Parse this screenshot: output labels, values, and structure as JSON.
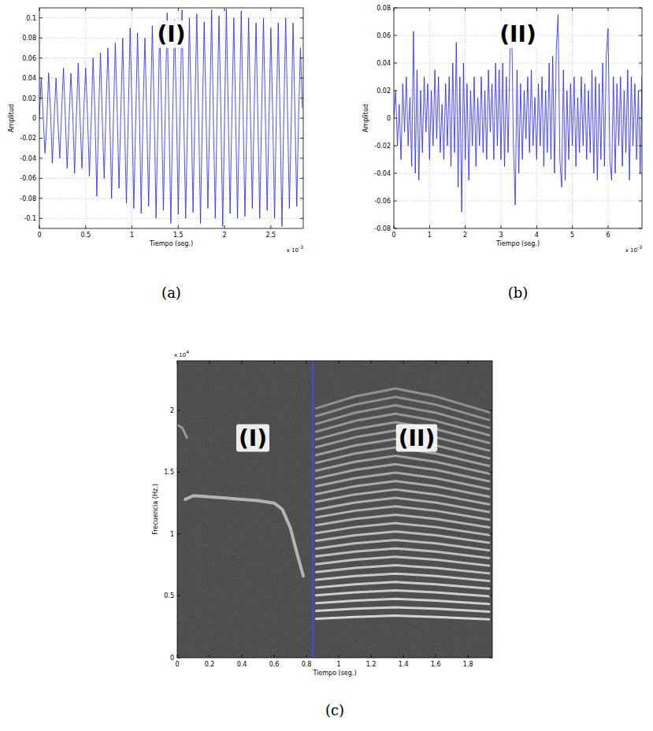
{
  "chart_data": [
    {
      "type": "line",
      "color": "#1f1fff",
      "x_label": "Tiempo (seg.)",
      "y_label": "Amplitud",
      "x_multiplier": {
        "base": "x 10",
        "exponent": "-3"
      },
      "annotations": [
        "(I)"
      ],
      "panel_label": "(a)",
      "xlim": [
        0,
        2.85
      ],
      "ylim": [
        -0.11,
        0.11
      ],
      "xticks": [
        0,
        0.5,
        1,
        1.5,
        2,
        2.5
      ],
      "yticks": [
        -0.1,
        -0.08,
        -0.06,
        -0.04,
        -0.02,
        0,
        0.02,
        0.04,
        0.06,
        0.08,
        0.1
      ],
      "grid": true,
      "x": [
        0,
        0.02,
        0.04,
        0.06,
        0.08,
        0.1,
        0.12,
        0.14,
        0.16,
        0.18,
        0.2,
        0.22,
        0.24,
        0.26,
        0.28,
        0.3,
        0.32,
        0.34,
        0.36,
        0.38,
        0.4,
        0.42,
        0.44,
        0.46,
        0.48,
        0.5,
        0.52,
        0.54,
        0.56,
        0.58,
        0.6,
        0.62,
        0.64,
        0.66,
        0.68,
        0.7,
        0.72,
        0.74,
        0.76,
        0.78,
        0.8,
        0.82,
        0.84,
        0.86,
        0.88,
        0.9,
        0.92,
        0.94,
        0.96,
        0.98,
        1,
        1.02,
        1.04,
        1.06,
        1.08,
        1.1,
        1.12,
        1.14,
        1.16,
        1.18,
        1.2,
        1.22,
        1.24,
        1.26,
        1.28,
        1.3,
        1.32,
        1.34,
        1.36,
        1.38,
        1.4,
        1.42,
        1.44,
        1.46,
        1.48,
        1.5,
        1.52,
        1.54,
        1.56,
        1.58,
        1.6,
        1.62,
        1.64,
        1.66,
        1.68,
        1.7,
        1.72,
        1.74,
        1.76,
        1.78,
        1.8,
        1.82,
        1.84,
        1.86,
        1.88,
        1.9,
        1.92,
        1.94,
        1.96,
        1.98,
        2,
        2.02,
        2.04,
        2.06,
        2.08,
        2.1,
        2.12,
        2.14,
        2.16,
        2.18,
        2.2,
        2.22,
        2.24,
        2.26,
        2.28,
        2.3,
        2.32,
        2.34,
        2.36,
        2.38,
        2.4,
        2.42,
        2.44,
        2.46,
        2.48,
        2.5,
        2.52,
        2.54,
        2.56,
        2.58,
        2.6,
        2.62,
        2.64,
        2.66,
        2.68,
        2.7,
        2.72,
        2.74,
        2.76,
        2.78,
        2.8,
        2.82,
        2.84
      ],
      "series": [
        {
          "values": [
            0.0,
            0.04,
            0.005,
            -0.035,
            -0.005,
            0.045,
            0.008,
            -0.045,
            0.0,
            0.04,
            -0.004,
            -0.04,
            0.006,
            0.05,
            0.002,
            -0.05,
            -0.004,
            0.045,
            0.006,
            -0.055,
            0.003,
            0.055,
            -0.002,
            -0.05,
            0.008,
            0.05,
            0.004,
            -0.058,
            -0.002,
            0.06,
            0.006,
            -0.078,
            0.004,
            0.065,
            -0.003,
            -0.06,
            0.01,
            0.07,
            0.002,
            -0.08,
            0.0,
            0.075,
            0.008,
            -0.07,
            0.006,
            0.08,
            -0.004,
            -0.085,
            0.002,
            0.09,
            0.006,
            -0.09,
            -0.004,
            0.085,
            0.01,
            -0.095,
            0.008,
            0.08,
            0.0,
            -0.088,
            0.004,
            0.092,
            0.006,
            -0.1,
            -0.006,
            0.095,
            0.004,
            -0.092,
            0.01,
            0.105,
            -0.002,
            -0.105,
            0.002,
            0.098,
            0.008,
            -0.096,
            0.006,
            0.108,
            0.0,
            -0.1,
            -0.004,
            0.1,
            0.01,
            -0.094,
            0.008,
            0.104,
            0.002,
            -0.105,
            0.0,
            0.096,
            0.006,
            -0.09,
            0.004,
            0.108,
            -0.004,
            -0.1,
            0.01,
            0.102,
            0.006,
            -0.108,
            -0.002,
            0.109,
            0.004,
            -0.095,
            0.006,
            0.1,
            0.0,
            -0.1,
            0.002,
            0.107,
            0.008,
            -0.098,
            -0.006,
            0.1,
            0.004,
            -0.09,
            0.008,
            0.095,
            0.0,
            -0.1,
            0.004,
            0.1,
            0.006,
            -0.092,
            0.0,
            0.09,
            0.004,
            -0.1,
            0.006,
            0.095,
            -0.002,
            -0.108,
            0.002,
            0.1,
            0.008,
            -0.09,
            -0.004,
            0.095,
            0.006,
            -0.088,
            0.004,
            0.07,
            0.01
          ]
        }
      ]
    },
    {
      "type": "line",
      "color": "#1f1fff",
      "x_label": "Tiempo (seg.)",
      "y_label": "Amplitud",
      "x_multiplier": {
        "base": "x 10",
        "exponent": "-3"
      },
      "annotations": [
        "(II)"
      ],
      "panel_label": "(b)",
      "xlim": [
        0,
        6.95
      ],
      "ylim": [
        -0.08,
        0.08
      ],
      "xticks": [
        0,
        1,
        2,
        3,
        4,
        5,
        6
      ],
      "yticks": [
        -0.08,
        -0.06,
        -0.04,
        -0.02,
        0,
        0.02,
        0.04,
        0.06,
        0.08
      ],
      "grid": true,
      "x": [
        0,
        0.05,
        0.1,
        0.15,
        0.2,
        0.25,
        0.3,
        0.35,
        0.4,
        0.45,
        0.5,
        0.55,
        0.6,
        0.65,
        0.7,
        0.75,
        0.8,
        0.85,
        0.9,
        0.95,
        1,
        1.05,
        1.1,
        1.15,
        1.2,
        1.25,
        1.3,
        1.35,
        1.4,
        1.45,
        1.5,
        1.55,
        1.6,
        1.65,
        1.7,
        1.75,
        1.8,
        1.85,
        1.9,
        1.95,
        2,
        2.05,
        2.1,
        2.15,
        2.2,
        2.25,
        2.3,
        2.35,
        2.4,
        2.45,
        2.5,
        2.55,
        2.6,
        2.65,
        2.7,
        2.75,
        2.8,
        2.85,
        2.9,
        2.95,
        3,
        3.05,
        3.1,
        3.15,
        3.2,
        3.25,
        3.3,
        3.35,
        3.4,
        3.45,
        3.5,
        3.55,
        3.6,
        3.65,
        3.7,
        3.75,
        3.8,
        3.85,
        3.9,
        3.95,
        4,
        4.05,
        4.1,
        4.15,
        4.2,
        4.25,
        4.3,
        4.35,
        4.4,
        4.45,
        4.5,
        4.55,
        4.6,
        4.65,
        4.7,
        4.75,
        4.8,
        4.85,
        4.9,
        4.95,
        5,
        5.05,
        5.1,
        5.15,
        5.2,
        5.25,
        5.3,
        5.35,
        5.4,
        5.45,
        5.5,
        5.55,
        5.6,
        5.65,
        5.7,
        5.75,
        5.8,
        5.85,
        5.9,
        5.95,
        6,
        6.05,
        6.1,
        6.15,
        6.2,
        6.25,
        6.3,
        6.35,
        6.4,
        6.45,
        6.5,
        6.55,
        6.6,
        6.65,
        6.7,
        6.75,
        6.8,
        6.85,
        6.9,
        6.95
      ],
      "series": [
        {
          "values": [
            0.0,
            0.02,
            -0.02,
            0.01,
            -0.03,
            0.025,
            -0.01,
            0.03,
            -0.02,
            0.015,
            -0.035,
            0.063,
            -0.04,
            0.035,
            -0.045,
            0.02,
            -0.025,
            0.03,
            -0.01,
            0.025,
            -0.03,
            0.02,
            -0.02,
            0.035,
            -0.015,
            0.03,
            -0.025,
            0.01,
            -0.03,
            0.025,
            -0.02,
            0.03,
            -0.035,
            0.04,
            -0.025,
            0.055,
            -0.05,
            0.03,
            -0.068,
            0.04,
            -0.03,
            0.025,
            -0.045,
            0.02,
            -0.02,
            0.03,
            -0.035,
            0.015,
            -0.02,
            0.03,
            -0.025,
            0.02,
            -0.03,
            0.035,
            -0.01,
            0.025,
            -0.03,
            0.04,
            -0.02,
            0.035,
            -0.03,
            0.04,
            -0.035,
            0.03,
            -0.025,
            0.045,
            0.07,
            -0.02,
            -0.063,
            0.035,
            -0.04,
            0.025,
            -0.03,
            0.02,
            -0.015,
            0.03,
            -0.025,
            0.035,
            -0.02,
            0.015,
            -0.03,
            0.025,
            -0.02,
            0.03,
            -0.035,
            0.02,
            -0.025,
            0.04,
            -0.03,
            0.045,
            -0.04,
            0.05,
            0.075,
            -0.03,
            -0.05,
            0.035,
            -0.045,
            0.02,
            -0.03,
            0.025,
            -0.02,
            0.03,
            -0.035,
            0.015,
            -0.025,
            0.03,
            -0.02,
            0.025,
            -0.03,
            0.02,
            -0.025,
            0.035,
            -0.04,
            0.03,
            -0.045,
            0.025,
            -0.03,
            0.04,
            -0.035,
            0.045,
            0.065,
            -0.03,
            -0.045,
            0.03,
            -0.04,
            0.025,
            -0.02,
            0.03,
            -0.035,
            0.02,
            -0.025,
            0.035,
            -0.045,
            0.03,
            -0.02,
            0.025,
            -0.03,
            0.02,
            -0.04,
            0.03
          ]
        }
      ]
    },
    {
      "type": "spectrogram",
      "color": "#e8e8e8",
      "x_label": "Tiempo (seg.)",
      "y_label": "Frecuencia (Hz.)",
      "y_multiplier": {
        "base": "x 10",
        "exponent": "4"
      },
      "annotations": [
        "(I)",
        "(II)"
      ],
      "panel_label": "(c)",
      "xlim": [
        0,
        1.95
      ],
      "ylim": [
        0,
        2.4
      ],
      "xticks": [
        0,
        0.2,
        0.4,
        0.6,
        0.8,
        1,
        1.2,
        1.4,
        1.6,
        1.8
      ],
      "yticks": [
        0,
        0.5,
        1,
        1.5,
        2
      ],
      "grid": false,
      "vline": 0.84,
      "series": [
        {
          "x": [
            0.0,
            0.03,
            0.06
          ],
          "values": [
            1.88,
            1.86,
            1.78
          ]
        },
        {
          "x": [
            0.05,
            0.1,
            0.2,
            0.3,
            0.4,
            0.5,
            0.6,
            0.65,
            0.7,
            0.74,
            0.78
          ],
          "values": [
            1.28,
            1.31,
            1.3,
            1.29,
            1.28,
            1.27,
            1.25,
            1.2,
            1.05,
            0.85,
            0.66
          ]
        },
        {
          "x": [
            0.86,
            1.1,
            1.35,
            1.6,
            1.93
          ],
          "values": [
            0.315,
            0.33,
            0.34,
            0.33,
            0.31
          ]
        },
        {
          "x": [
            0.86,
            1.1,
            1.35,
            1.6,
            1.93
          ],
          "values": [
            0.378,
            0.396,
            0.408,
            0.396,
            0.372
          ]
        },
        {
          "x": [
            0.86,
            1.1,
            1.35,
            1.6,
            1.93
          ],
          "values": [
            0.441,
            0.462,
            0.476,
            0.462,
            0.434
          ]
        },
        {
          "x": [
            0.86,
            1.1,
            1.35,
            1.6,
            1.93
          ],
          "values": [
            0.504,
            0.528,
            0.544,
            0.528,
            0.496
          ]
        },
        {
          "x": [
            0.86,
            1.1,
            1.35,
            1.6,
            1.93
          ],
          "values": [
            0.567,
            0.594,
            0.612,
            0.594,
            0.558
          ]
        },
        {
          "x": [
            0.86,
            1.1,
            1.35,
            1.6,
            1.93
          ],
          "values": [
            0.63,
            0.66,
            0.68,
            0.66,
            0.62
          ]
        },
        {
          "x": [
            0.86,
            1.1,
            1.35,
            1.6,
            1.93
          ],
          "values": [
            0.693,
            0.726,
            0.748,
            0.726,
            0.682
          ]
        },
        {
          "x": [
            0.86,
            1.1,
            1.35,
            1.6,
            1.93
          ],
          "values": [
            0.756,
            0.792,
            0.816,
            0.792,
            0.744
          ]
        },
        {
          "x": [
            0.86,
            1.1,
            1.35,
            1.6,
            1.93
          ],
          "values": [
            0.819,
            0.858,
            0.884,
            0.858,
            0.806
          ]
        },
        {
          "x": [
            0.86,
            1.1,
            1.35,
            1.6,
            1.93
          ],
          "values": [
            0.882,
            0.924,
            0.952,
            0.924,
            0.868
          ]
        },
        {
          "x": [
            0.86,
            1.1,
            1.35,
            1.6,
            1.93
          ],
          "values": [
            0.945,
            0.99,
            1.02,
            0.99,
            0.93
          ]
        },
        {
          "x": [
            0.86,
            1.1,
            1.35,
            1.6,
            1.93
          ],
          "values": [
            1.008,
            1.056,
            1.088,
            1.056,
            0.992
          ]
        },
        {
          "x": [
            0.86,
            1.1,
            1.35,
            1.6,
            1.93
          ],
          "values": [
            1.071,
            1.122,
            1.156,
            1.122,
            1.054
          ]
        },
        {
          "x": [
            0.86,
            1.1,
            1.35,
            1.6,
            1.93
          ],
          "values": [
            1.134,
            1.188,
            1.224,
            1.188,
            1.116
          ]
        },
        {
          "x": [
            0.86,
            1.1,
            1.35,
            1.6,
            1.93
          ],
          "values": [
            1.197,
            1.254,
            1.292,
            1.254,
            1.178
          ]
        },
        {
          "x": [
            0.86,
            1.1,
            1.35,
            1.6,
            1.93
          ],
          "values": [
            1.26,
            1.32,
            1.36,
            1.32,
            1.24
          ]
        },
        {
          "x": [
            0.86,
            1.1,
            1.35,
            1.6,
            1.93
          ],
          "values": [
            1.323,
            1.386,
            1.428,
            1.386,
            1.302
          ]
        },
        {
          "x": [
            0.86,
            1.1,
            1.35,
            1.6,
            1.93
          ],
          "values": [
            1.386,
            1.452,
            1.496,
            1.452,
            1.364
          ]
        },
        {
          "x": [
            0.86,
            1.1,
            1.35,
            1.6,
            1.93
          ],
          "values": [
            1.449,
            1.518,
            1.564,
            1.518,
            1.426
          ]
        },
        {
          "x": [
            0.86,
            1.1,
            1.35,
            1.6,
            1.93
          ],
          "values": [
            1.512,
            1.584,
            1.632,
            1.584,
            1.488
          ]
        },
        {
          "x": [
            0.86,
            1.1,
            1.35,
            1.6,
            1.93
          ],
          "values": [
            1.575,
            1.65,
            1.7,
            1.65,
            1.55
          ]
        },
        {
          "x": [
            0.86,
            1.1,
            1.35,
            1.6,
            1.93
          ],
          "values": [
            1.638,
            1.716,
            1.768,
            1.716,
            1.612
          ]
        },
        {
          "x": [
            0.86,
            1.1,
            1.35,
            1.6,
            1.93
          ],
          "values": [
            1.701,
            1.782,
            1.836,
            1.782,
            1.674
          ]
        },
        {
          "x": [
            0.86,
            1.1,
            1.35,
            1.6,
            1.93
          ],
          "values": [
            1.764,
            1.848,
            1.904,
            1.848,
            1.736
          ]
        },
        {
          "x": [
            0.86,
            1.1,
            1.35,
            1.6,
            1.93
          ],
          "values": [
            1.827,
            1.914,
            1.972,
            1.914,
            1.798
          ]
        },
        {
          "x": [
            0.86,
            1.1,
            1.35,
            1.6,
            1.93
          ],
          "values": [
            1.89,
            1.98,
            2.04,
            1.98,
            1.86
          ]
        },
        {
          "x": [
            0.86,
            1.1,
            1.35,
            1.6,
            1.93
          ],
          "values": [
            1.953,
            2.046,
            2.108,
            2.046,
            1.922
          ]
        },
        {
          "x": [
            0.86,
            1.1,
            1.35,
            1.6,
            1.93
          ],
          "values": [
            2.016,
            2.112,
            2.176,
            2.112,
            1.984
          ]
        }
      ]
    }
  ]
}
